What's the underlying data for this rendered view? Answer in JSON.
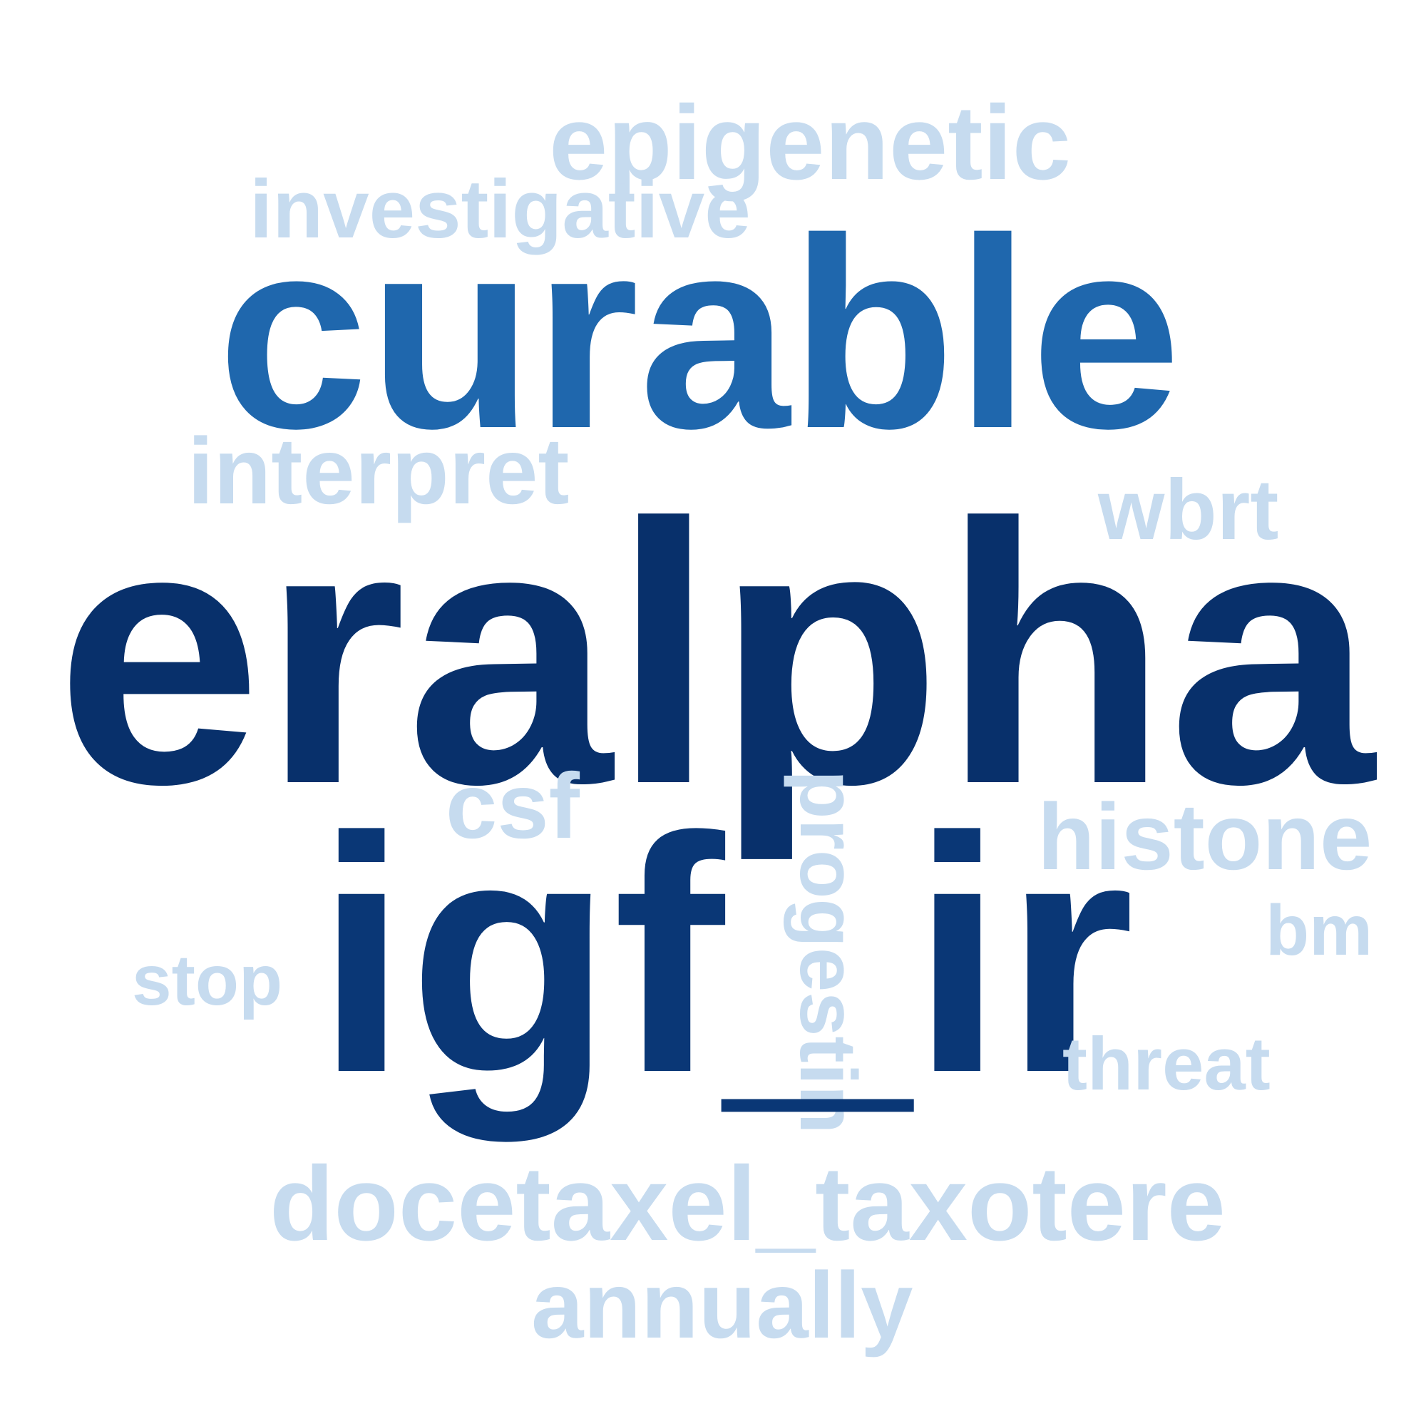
{
  "words": {
    "epigenetic": "epigenetic",
    "investigative": "investigative",
    "curable": "curable",
    "interpret": "interpret",
    "wbrt": "wbrt",
    "eralpha": "eralpha",
    "csf": "csf",
    "progestin": "progestin",
    "histone": "histone",
    "bm": "bm",
    "stop": "stop",
    "igf_ir": "igf_ir",
    "threat": "threat",
    "docetaxel_taxotere": "docetaxel_taxotere",
    "annually": "annually"
  },
  "colors": {
    "light": "#c6dbef",
    "mid": "#1f67ad",
    "dark": "#08306b"
  }
}
